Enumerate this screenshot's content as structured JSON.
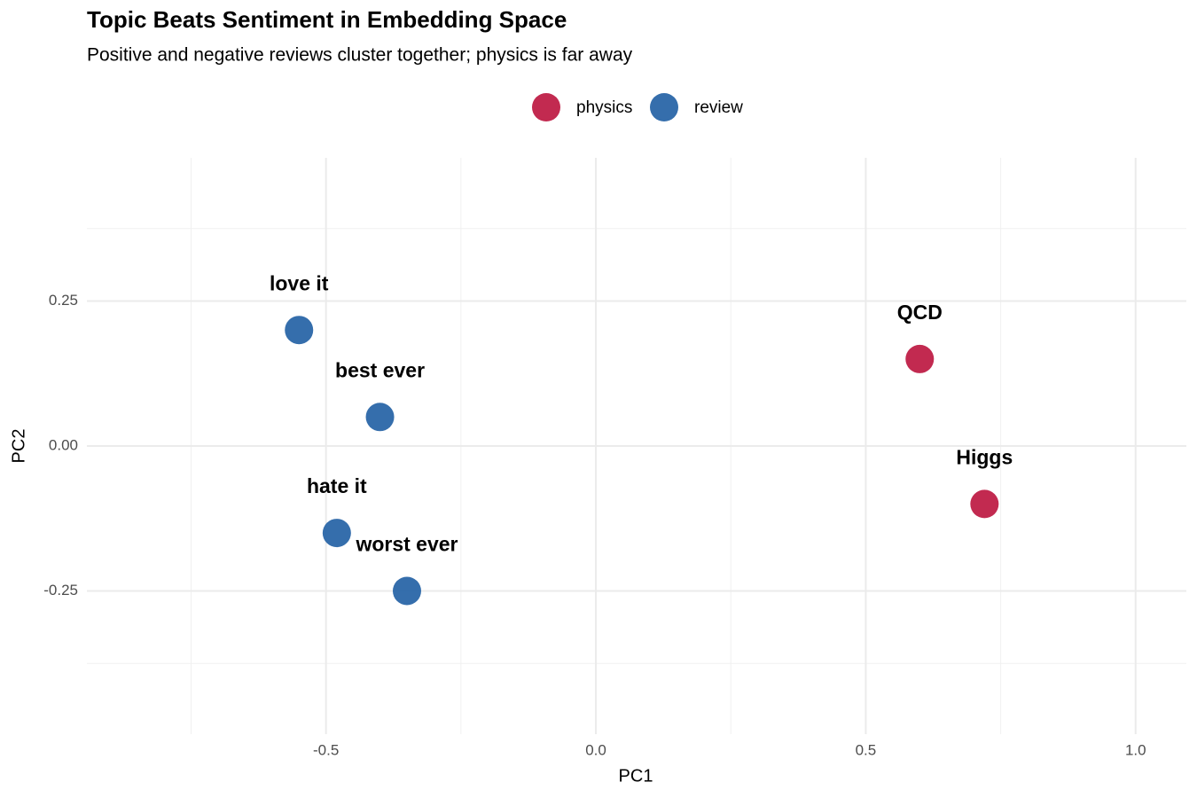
{
  "chart_data": {
    "type": "scatter",
    "title": "Topic Beats Sentiment in Embedding Space",
    "subtitle": "Positive and negative reviews cluster together; physics is far away",
    "x_label": "PC1",
    "y_label": "PC2",
    "xlim": [
      -0.943,
      1.094
    ],
    "ylim": [
      -0.497,
      0.497
    ],
    "xticks": [
      {
        "value": -0.5,
        "label": "-0.5"
      },
      {
        "value": 0,
        "label": "0.0"
      },
      {
        "value": 0.5,
        "label": "0.5"
      },
      {
        "value": 1,
        "label": "1.0"
      }
    ],
    "yticks": [
      {
        "value": -0.25,
        "label": "-0.25"
      },
      {
        "value": 0,
        "label": "0.00"
      },
      {
        "value": 0.25,
        "label": "0.25"
      }
    ],
    "xminor": [
      -0.75,
      -0.25,
      0.25,
      0.75
    ],
    "yminor": [
      -0.375,
      0.375
    ],
    "grid": true,
    "legend": "top",
    "series": [
      {
        "name": "physics",
        "color": "#bf1f47",
        "x": [
          0.6,
          0.72
        ],
        "values": [
          0.15,
          -0.1
        ],
        "labels": [
          "QCD",
          "Higgs"
        ]
      },
      {
        "name": "review",
        "color": "#2a66a8",
        "x": [
          -0.55,
          -0.4,
          -0.48,
          -0.35
        ],
        "values": [
          0.2,
          0.05,
          -0.15,
          -0.25
        ],
        "labels": [
          "love it",
          "best ever",
          "hate it",
          "worst ever"
        ]
      }
    ]
  }
}
